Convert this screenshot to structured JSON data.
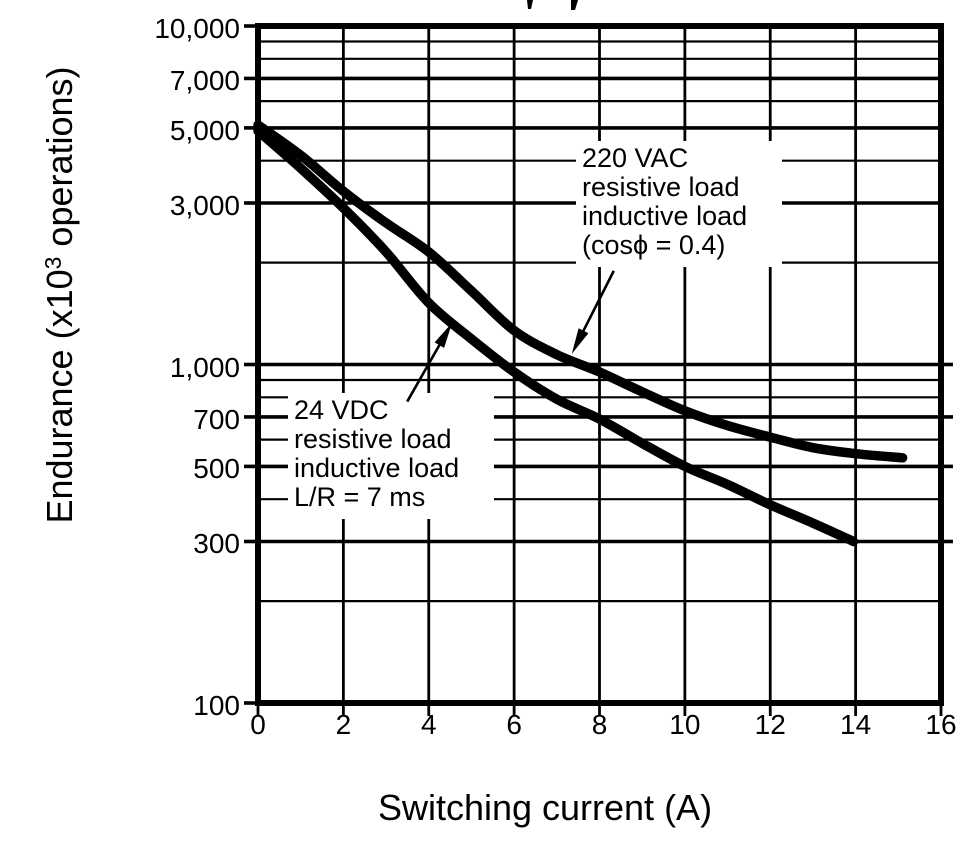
{
  "chart_data": {
    "type": "line",
    "xlabel": "Switching current (A)",
    "ylabel_prefix": "Endurance (x10",
    "ylabel_sup": "3",
    "ylabel_suffix": " operations)",
    "grid": "on",
    "x_axis": {
      "scale": "linear",
      "min": 0,
      "max": 16,
      "ticks": [
        {
          "value": 0,
          "label": "0"
        },
        {
          "value": 2,
          "label": "2"
        },
        {
          "value": 4,
          "label": "4"
        },
        {
          "value": 6,
          "label": "6"
        },
        {
          "value": 8,
          "label": "8"
        },
        {
          "value": 10,
          "label": "10"
        },
        {
          "value": 12,
          "label": "12"
        },
        {
          "value": 14,
          "label": "14"
        },
        {
          "value": 16,
          "label": "16"
        }
      ]
    },
    "y_axis": {
      "scale": "log",
      "min": 100,
      "max": 10000,
      "gridline_values": [
        100,
        200,
        300,
        400,
        500,
        600,
        700,
        800,
        900,
        1000,
        2000,
        3000,
        4000,
        5000,
        6000,
        7000,
        8000,
        9000,
        10000
      ],
      "labeled_ticks": [
        {
          "value": 10000,
          "label": "10,000"
        },
        {
          "value": 7000,
          "label": "7,000"
        },
        {
          "value": 5000,
          "label": "5,000"
        },
        {
          "value": 3000,
          "label": "3,000"
        },
        {
          "value": 1000,
          "label": "1,000"
        },
        {
          "value": 700,
          "label": "700"
        },
        {
          "value": 500,
          "label": "500"
        },
        {
          "value": 300,
          "label": "300"
        },
        {
          "value": 100,
          "label": "100"
        }
      ],
      "right_stub_values": [
        1000,
        700,
        500,
        300
      ]
    },
    "series": [
      {
        "id": "220vac",
        "name": "220 VAC resistive load / inductive load (cos phi = 0.4)",
        "points": [
          [
            0,
            5100
          ],
          [
            1,
            4150
          ],
          [
            2,
            3250
          ],
          [
            3,
            2620
          ],
          [
            4,
            2150
          ],
          [
            5,
            1650
          ],
          [
            6,
            1260
          ],
          [
            7,
            1070
          ],
          [
            8,
            950
          ],
          [
            9,
            830
          ],
          [
            10,
            730
          ],
          [
            11,
            660
          ],
          [
            12,
            610
          ],
          [
            13,
            568
          ],
          [
            14,
            545
          ],
          [
            15.1,
            530
          ]
        ]
      },
      {
        "id": "24vdc",
        "name": "24 VDC resistive load / inductive load L/R = 7 ms",
        "points": [
          [
            0,
            4900
          ],
          [
            1,
            3800
          ],
          [
            2,
            2900
          ],
          [
            3,
            2150
          ],
          [
            4,
            1520
          ],
          [
            5,
            1190
          ],
          [
            6,
            950
          ],
          [
            7,
            790
          ],
          [
            8,
            690
          ],
          [
            9,
            585
          ],
          [
            10,
            500
          ],
          [
            11,
            442
          ],
          [
            12,
            385
          ],
          [
            13,
            340
          ],
          [
            13.95,
            300
          ]
        ]
      }
    ],
    "annotations": [
      {
        "id": "220vac",
        "lines": [
          "220 VAC",
          "resistive load",
          "inductive load",
          "(cosϕ = 0.4)"
        ],
        "arrow_points_to": {
          "x": 7.35,
          "y": 1075
        }
      },
      {
        "id": "24vdc",
        "lines": [
          "24 VDC",
          "resistive load",
          "inductive load",
          "L/R = 7 ms"
        ],
        "arrow_points_to": {
          "x": 4.55,
          "y": 1330
        }
      }
    ],
    "colors": {
      "ink": "#000000",
      "background": "#ffffff"
    }
  }
}
